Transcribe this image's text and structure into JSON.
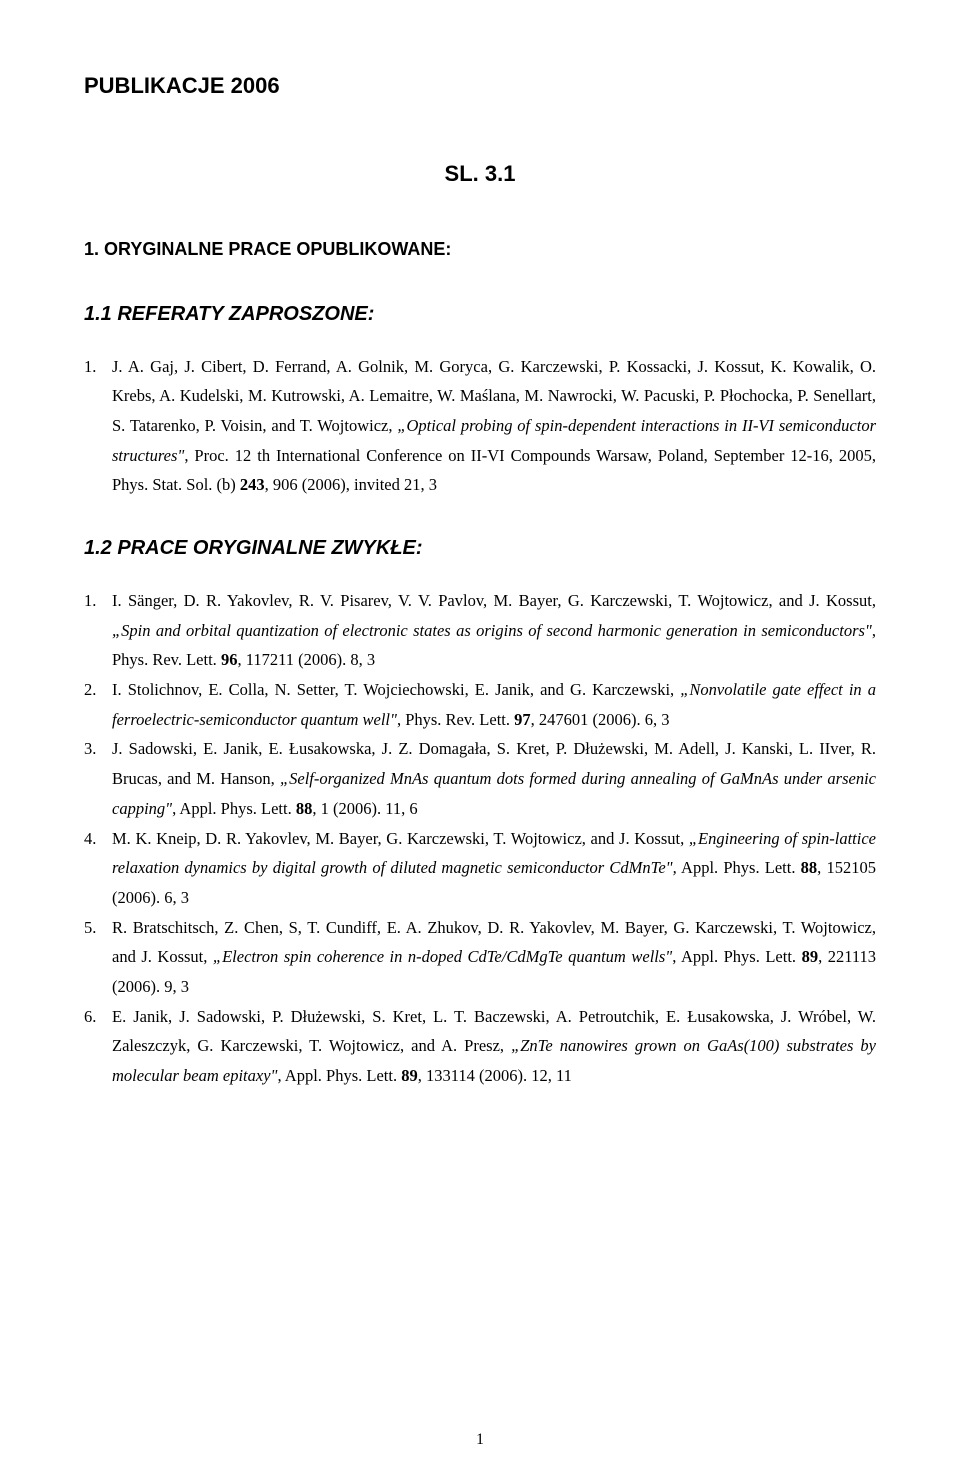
{
  "doc_title": "PUBLIKACJE 2006",
  "sl_heading": "SL. 3.1",
  "section1_heading": "1. ORYGINALNE PRACE OPUBLIKOWANE:",
  "section11_heading": "1.1  REFERATY ZAPROSZONE:",
  "ref_invited": {
    "num": "1.",
    "authors": "J. A. Gaj, J. Cibert, D. Ferrand, A. Golnik, M. Goryca, G. Karczewski, P. Kossacki, J. Kossut, K. Kowalik, O. Krebs, A. Kudelski, M. Kutrowski, A. Lemaitre, W. Maślana, M. Nawrocki, W. Pacuski, P. Płochocka, P. Senellart, S. Tatarenko, P. Voisin, and T. Wojtowicz, ",
    "title": "„Optical probing of spin-dependent interactions in II-VI semiconductor structures\"",
    "rest1": ", Proc. 12 th International Conference on II-VI Compounds Warsaw, Poland, September 12-16, 2005, Phys. Stat. Sol. (b) ",
    "vol": "243",
    "rest2": ", 906 (2006), invited 21, 3"
  },
  "section12_heading": "1.2  PRACE ORYGINALNE ZWYKŁE:",
  "refs": [
    {
      "num": "1.",
      "authors": "I. Sänger, D. R. Yakovlev, R. V. Pisarev, V. V. Pavlov, M. Bayer, G. Karczewski, T. Wojtowicz, and J. Kossut, ",
      "title": "„Spin and orbital quantization of electronic states as origins of second harmonic generation in semiconductors\"",
      "rest1": ", Phys. Rev. Lett. ",
      "vol": "96",
      "rest2": ", 117211 (2006). 8, 3"
    },
    {
      "num": "2.",
      "authors": "I. Stolichnov, E. Colla, N. Setter, T. Wojciechowski, E. Janik, and G. Karczewski, ",
      "title": "„Nonvolatile gate effect in a ferroelectric-semiconductor quantum well\"",
      "rest1": ", Phys. Rev. Lett. ",
      "vol": "97",
      "rest2": ", 247601 (2006). 6, 3"
    },
    {
      "num": "3.",
      "authors": "J. Sadowski, E. Janik, E. Łusakowska, J. Z. Domagała, S. Kret, P. Dłużewski, M. Adell, J. Kanski, L. IIver, R. Brucas, and M. Hanson, ",
      "title": "„Self-organized MnAs quantum dots formed during annealing of GaMnAs under arsenic capping\"",
      "rest1": ", Appl. Phys. Lett. ",
      "vol": "88",
      "rest2": ", 1 (2006). 11, 6"
    },
    {
      "num": "4.",
      "authors": "M. K. Kneip, D. R. Yakovlev, M. Bayer, G. Karczewski, T. Wojtowicz, and J. Kossut, ",
      "title": "„Engineering of spin-lattice relaxation dynamics by digital growth of diluted magnetic semiconductor CdMnTe\",",
      "rest1": " Appl. Phys. Lett. ",
      "vol": "88",
      "rest2": ", 152105 (2006). 6, 3"
    },
    {
      "num": "5.",
      "authors": "R. Bratschitsch, Z. Chen, S, T. Cundiff, E. A. Zhukov, D. R. Yakovlev, M. Bayer, G. Karczewski, T. Wojtowicz, and J. Kossut, ",
      "title": "„Electron spin coherence in n-doped CdTe/CdMgTe quantum wells\"",
      "rest1": ", Appl. Phys. Lett. ",
      "vol": "89",
      "rest2": ", 221113 (2006). 9, 3"
    },
    {
      "num": "6.",
      "authors": "E. Janik, J. Sadowski, P. Dłużewski, S. Kret, L. T. Baczewski, A. Petroutchik, E. Łusakowska, J. Wróbel, W. Zaleszczyk, G. Karczewski, T. Wojtowicz, and A. Presz, ",
      "title": "„ZnTe nanowires grown on GaAs(100) substrates by molecular beam epitaxy\"",
      "rest1": ", Appl. Phys. Lett. ",
      "vol": "89",
      "rest2": ", 133114 (2006). 12, 11"
    }
  ],
  "page_number": "1",
  "colors": {
    "text": "#000000",
    "background": "#ffffff"
  },
  "typography": {
    "body_font": "Times New Roman",
    "heading_font": "Arial",
    "body_size_pt": 12,
    "heading_size_pt": 14
  }
}
